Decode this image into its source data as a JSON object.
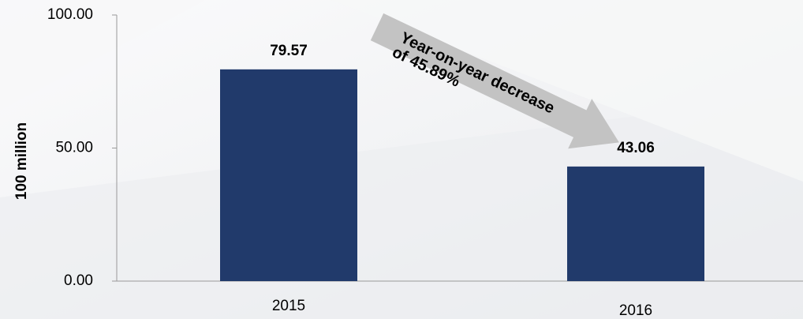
{
  "chart_data": {
    "type": "bar",
    "categories": [
      "2015",
      "2016"
    ],
    "values": [
      79.57,
      43.06
    ],
    "value_labels": [
      "79.57",
      "43.06"
    ],
    "ylabel": "100 million",
    "ylim": [
      0,
      100
    ],
    "yticks": [
      "0.00",
      "50.00",
      "100.00"
    ],
    "grid": false,
    "legend": "none",
    "bar_color": "#213A6B",
    "annotation": {
      "line1": "Year-on-year decrease",
      "line2": "of 45.89%",
      "arrow_color": "#C3C3C3"
    }
  }
}
